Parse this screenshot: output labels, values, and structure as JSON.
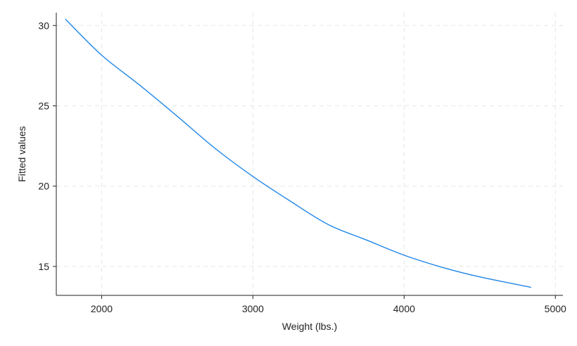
{
  "chart_data": {
    "type": "line",
    "title": "",
    "xlabel": "Weight (lbs.)",
    "ylabel": "Fitted values",
    "xlim": [
      1700,
      5050
    ],
    "ylim": [
      13.2,
      30.8
    ],
    "xticks": [
      2000,
      3000,
      4000,
      5000
    ],
    "yticks": [
      15,
      20,
      25,
      30
    ],
    "grid": true,
    "series": [
      {
        "color": "#1f86e8",
        "x": [
          1760,
          2000,
          2250,
          2500,
          2750,
          3000,
          3250,
          3500,
          3750,
          4000,
          4250,
          4500,
          4840
        ],
        "y": [
          30.4,
          28.15,
          26.3,
          24.35,
          22.35,
          20.6,
          19.05,
          17.6,
          16.65,
          15.7,
          14.95,
          14.35,
          13.7
        ]
      }
    ]
  }
}
